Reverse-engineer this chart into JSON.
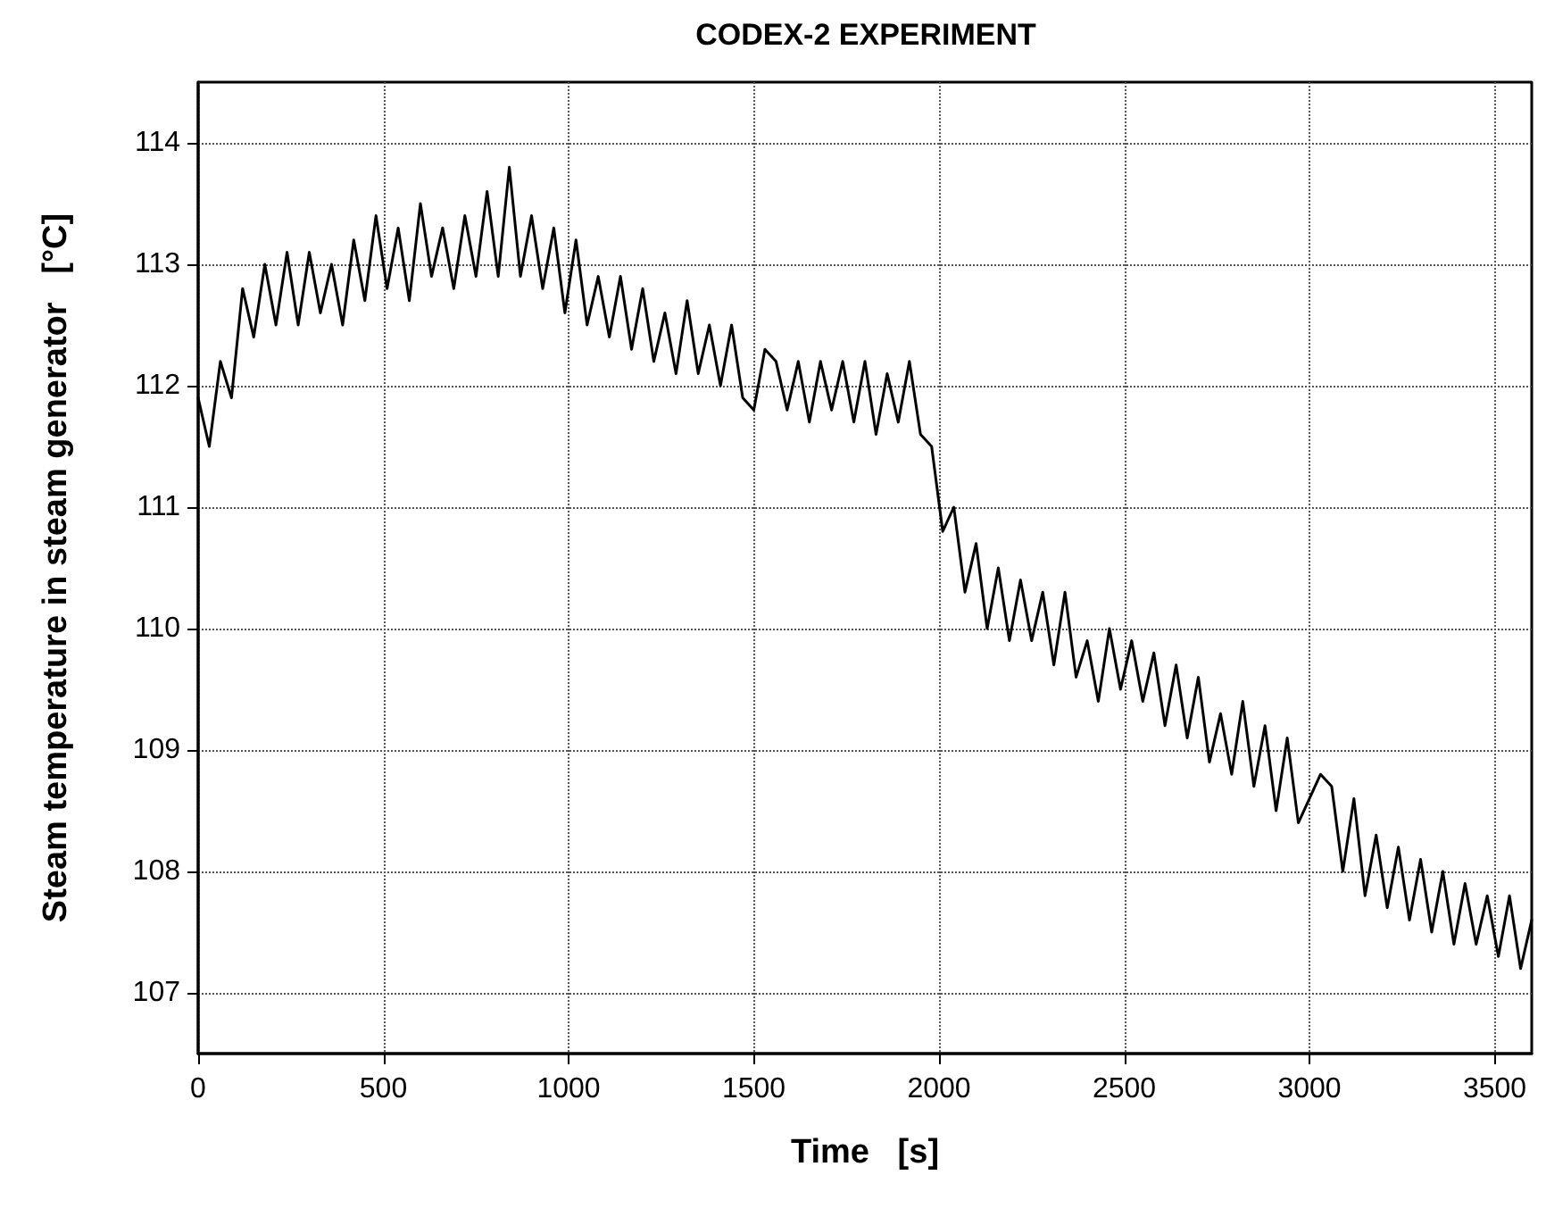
{
  "chart_data": {
    "type": "line",
    "title": "CODEX-2 EXPERIMENT",
    "xlabel": "Time   [s]",
    "ylabel": "Steam temperature in steam generator   [°C]",
    "xlim": [
      0,
      3600
    ],
    "xticks": [
      0,
      500,
      1000,
      1500,
      2000,
      2500,
      3000,
      3500
    ],
    "ylim": [
      106.5,
      114.5
    ],
    "yticks": [
      107,
      108,
      109,
      110,
      111,
      112,
      113,
      114
    ],
    "grid": true,
    "marker": "none",
    "line_style": "solid",
    "series": [
      {
        "color": "#000000",
        "x": [
          0,
          30,
          60,
          90,
          120,
          150,
          180,
          210,
          240,
          270,
          300,
          330,
          360,
          390,
          420,
          450,
          480,
          510,
          540,
          570,
          600,
          630,
          660,
          690,
          720,
          750,
          780,
          810,
          840,
          870,
          900,
          930,
          960,
          990,
          1020,
          1050,
          1080,
          1110,
          1140,
          1170,
          1200,
          1230,
          1260,
          1290,
          1320,
          1350,
          1380,
          1410,
          1440,
          1470,
          1500,
          1530,
          1560,
          1590,
          1620,
          1650,
          1680,
          1710,
          1740,
          1770,
          1800,
          1830,
          1860,
          1890,
          1920,
          1950,
          1980,
          2010,
          2040,
          2070,
          2100,
          2130,
          2160,
          2190,
          2220,
          2250,
          2280,
          2310,
          2340,
          2370,
          2400,
          2430,
          2460,
          2490,
          2520,
          2550,
          2580,
          2610,
          2640,
          2670,
          2700,
          2730,
          2760,
          2790,
          2820,
          2850,
          2880,
          2910,
          2940,
          2970,
          3000,
          3030,
          3060,
          3090,
          3120,
          3150,
          3180,
          3210,
          3240,
          3270,
          3300,
          3330,
          3360,
          3390,
          3420,
          3450,
          3480,
          3510,
          3540,
          3570,
          3600
        ],
        "values": [
          111.9,
          111.5,
          112.2,
          111.9,
          112.8,
          112.4,
          113.0,
          112.5,
          113.1,
          112.5,
          113.1,
          112.6,
          113.0,
          112.5,
          113.2,
          112.7,
          113.4,
          112.8,
          113.3,
          112.7,
          113.5,
          112.9,
          113.3,
          112.8,
          113.4,
          112.9,
          113.6,
          112.9,
          113.8,
          112.9,
          113.4,
          112.8,
          113.3,
          112.6,
          113.2,
          112.5,
          112.9,
          112.4,
          112.9,
          112.3,
          112.8,
          112.2,
          112.6,
          112.1,
          112.7,
          112.1,
          112.5,
          112.0,
          112.5,
          111.9,
          111.8,
          112.3,
          112.2,
          111.8,
          112.2,
          111.7,
          112.2,
          111.8,
          112.2,
          111.7,
          112.2,
          111.6,
          112.1,
          111.7,
          112.2,
          111.6,
          111.5,
          110.8,
          111.0,
          110.3,
          110.7,
          110.0,
          110.5,
          109.9,
          110.4,
          109.9,
          110.3,
          109.7,
          110.3,
          109.6,
          109.9,
          109.4,
          110.0,
          109.5,
          109.9,
          109.4,
          109.8,
          109.2,
          109.7,
          109.1,
          109.6,
          108.9,
          109.3,
          108.8,
          109.4,
          108.7,
          109.2,
          108.5,
          109.1,
          108.4,
          108.6,
          108.8,
          108.7,
          108.0,
          108.6,
          107.8,
          108.3,
          107.7,
          108.2,
          107.6,
          108.1,
          107.5,
          108.0,
          107.4,
          107.9,
          107.4,
          107.8,
          107.3,
          107.8,
          107.2,
          107.6
        ]
      }
    ]
  }
}
